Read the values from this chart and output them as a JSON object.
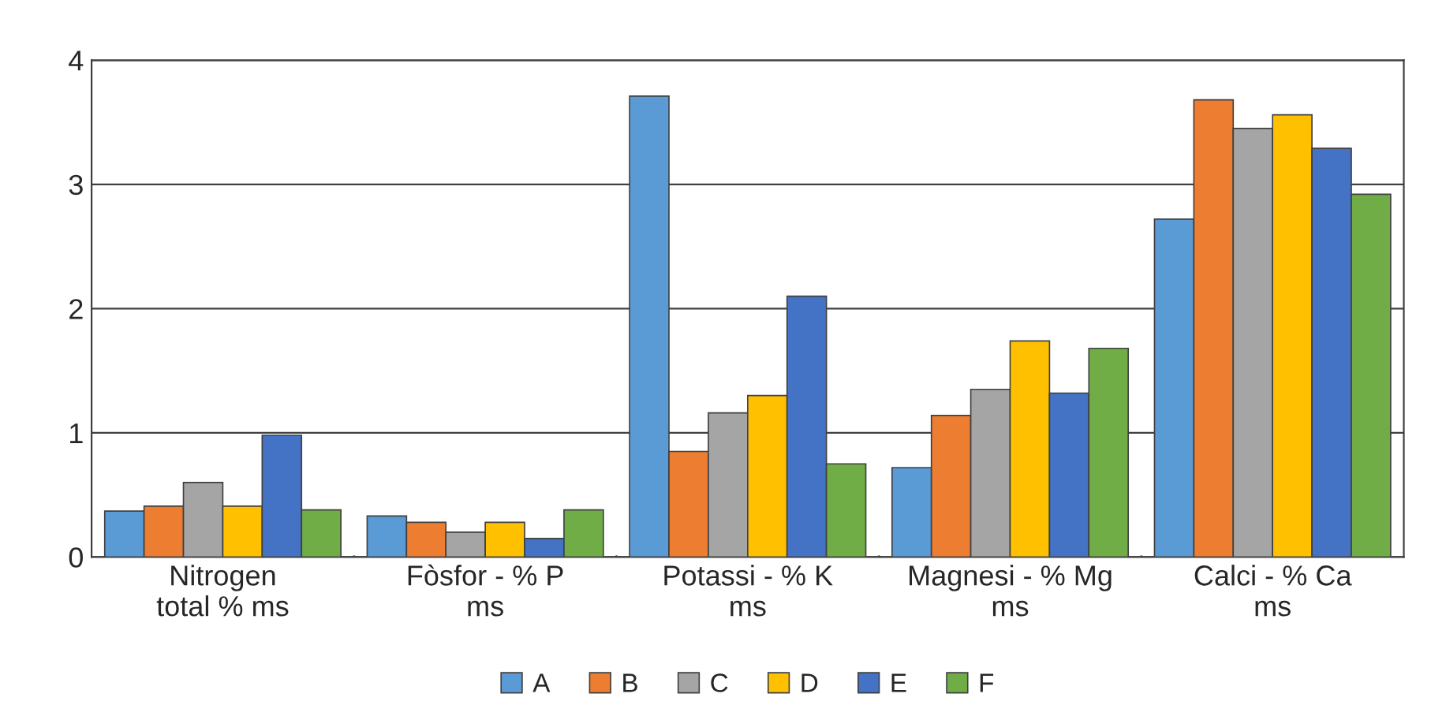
{
  "chart_data": {
    "type": "bar",
    "categories": [
      "Nitrogen\ntotal % ms",
      "Fòsfor - % P\nms",
      "Potassi - % K\nms",
      "Magnesi - % Mg\nms",
      "Calci - % Ca\nms"
    ],
    "series": [
      {
        "name": "A",
        "color": "#5b9bd5",
        "values": [
          0.37,
          0.33,
          3.71,
          0.72,
          2.72
        ]
      },
      {
        "name": "B",
        "color": "#ed7d31",
        "values": [
          0.41,
          0.28,
          0.85,
          1.14,
          3.68
        ]
      },
      {
        "name": "C",
        "color": "#a5a5a5",
        "values": [
          0.6,
          0.2,
          1.16,
          1.35,
          3.45
        ]
      },
      {
        "name": "D",
        "color": "#ffc000",
        "values": [
          0.41,
          0.28,
          1.3,
          1.74,
          3.56
        ]
      },
      {
        "name": "E",
        "color": "#4472c4",
        "values": [
          0.98,
          0.15,
          2.1,
          1.32,
          3.29
        ]
      },
      {
        "name": "F",
        "color": "#70ad47",
        "values": [
          0.38,
          0.38,
          0.75,
          1.68,
          2.92
        ]
      }
    ],
    "ylim": [
      0,
      4
    ],
    "yticks": [
      0,
      1,
      2,
      3,
      4
    ],
    "grid": "y",
    "legend": "bottom"
  }
}
